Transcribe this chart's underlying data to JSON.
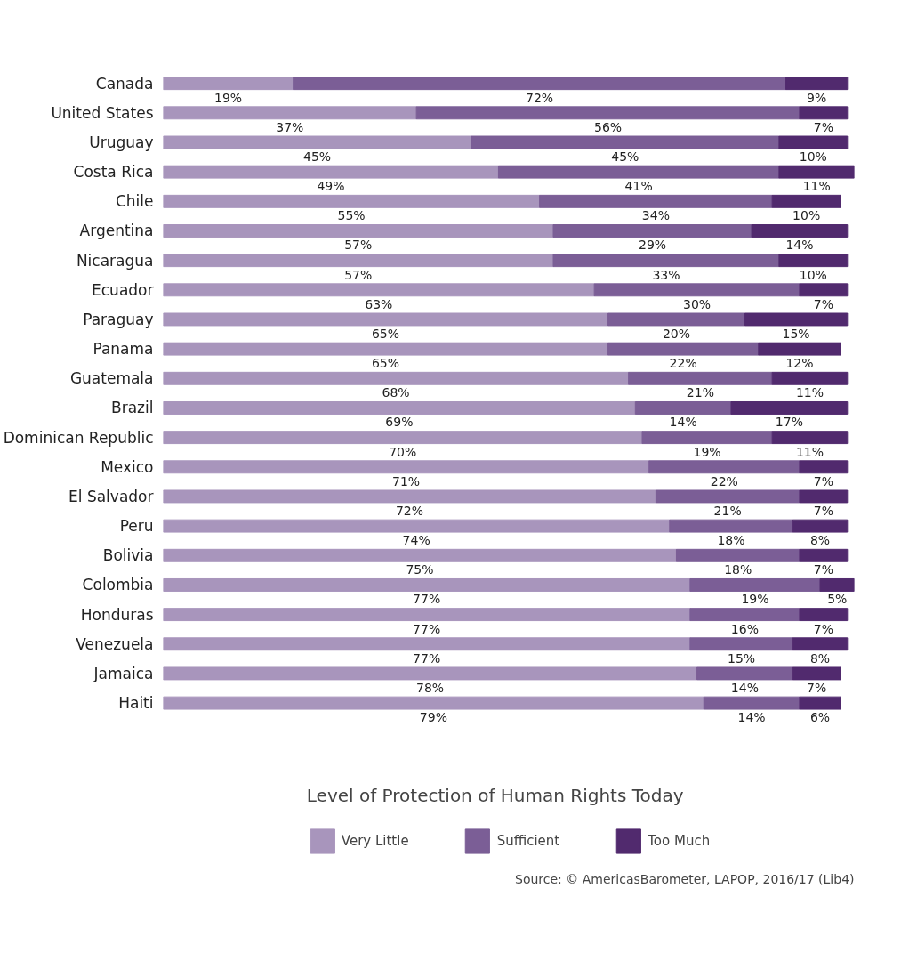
{
  "chart_data": {
    "type": "bar",
    "orientation": "horizontal",
    "stacked": true,
    "tick_labels": "y",
    "grid": false,
    "legend": "bottom",
    "legend_title": "Level of Protection of Human Rights Today",
    "categories": [
      "Canada",
      "United States",
      "Uruguay",
      "Costa Rica",
      "Chile",
      "Argentina",
      "Nicaragua",
      "Ecuador",
      "Paraguay",
      "Panama",
      "Guatemala",
      "Brazil",
      "Dominican Republic",
      "Mexico",
      "El Salvador",
      "Peru",
      "Bolivia",
      "Colombia",
      "Honduras",
      "Venezuela",
      "Jamaica",
      "Haiti"
    ],
    "series": [
      {
        "name": "Very Little",
        "color": "#a895bc",
        "values": [
          19,
          37,
          45,
          49,
          55,
          57,
          57,
          63,
          65,
          65,
          68,
          69,
          70,
          71,
          72,
          74,
          75,
          77,
          77,
          77,
          78,
          79
        ],
        "value_labels": [
          "19%",
          "37%",
          "45%",
          "49%",
          "55%",
          "57%",
          "57%",
          "63%",
          "65%",
          "65%",
          "68%",
          "69%",
          "70%",
          "71%",
          "72%",
          "74%",
          "75%",
          "77%",
          "77%",
          "77%",
          "78%",
          "79%"
        ]
      },
      {
        "name": "Sufficient",
        "color": "#7b5e96",
        "values": [
          72,
          56,
          45,
          41,
          34,
          29,
          33,
          30,
          20,
          22,
          21,
          14,
          19,
          22,
          21,
          18,
          18,
          19,
          16,
          15,
          14,
          14
        ],
        "value_labels": [
          "72%",
          "56%",
          "45%",
          "41%",
          "34%",
          "29%",
          "33%",
          "30%",
          "20%",
          "22%",
          "21%",
          "14%",
          "19%",
          "22%",
          "21%",
          "18%",
          "18%",
          "19%",
          "16%",
          "15%",
          "14%",
          "14%"
        ]
      },
      {
        "name": "Too Much",
        "color": "#512a6e",
        "values": [
          9,
          7,
          10,
          11,
          10,
          14,
          10,
          7,
          15,
          12,
          11,
          17,
          11,
          7,
          7,
          8,
          7,
          5,
          7,
          8,
          7,
          6
        ],
        "value_labels": [
          "9%",
          "7%",
          "10%",
          "11%",
          "10%",
          "14%",
          "10%",
          "7%",
          "15%",
          "12%",
          "11%",
          "17%",
          "11%",
          "7%",
          "7%",
          "8%",
          "7%",
          "5%",
          "7%",
          "8%",
          "7%",
          "6%"
        ]
      }
    ],
    "annotations": [
      "Source: © AmericasBarometer, LAPOP, 2016/17 (Lib4)"
    ]
  }
}
